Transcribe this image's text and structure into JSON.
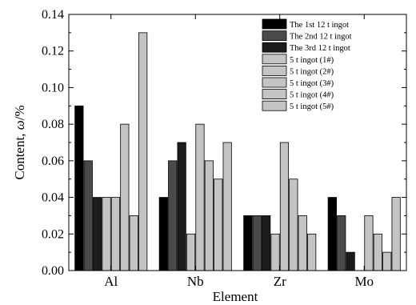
{
  "chart_data": {
    "type": "bar",
    "title": "",
    "xlabel": "Element",
    "ylabel_prefix": "Content, ",
    "ylabel_symbol": "ω",
    "ylabel_suffix": "/%",
    "categories": [
      "Al",
      "Nb",
      "Zr",
      "Mo"
    ],
    "ylim": [
      0,
      0.14
    ],
    "yticks": [
      0.0,
      0.02,
      0.04,
      0.06,
      0.08,
      0.1,
      0.12,
      0.14
    ],
    "ytick_labels": [
      "0.00",
      "0.02",
      "0.04",
      "0.06",
      "0.08",
      "0.10",
      "0.12",
      "0.14"
    ],
    "grid": false,
    "legend_position": "top-right",
    "series": [
      {
        "name": "The 1st 12 t ingot",
        "color": "#000000",
        "values": [
          0.09,
          0.04,
          0.03,
          0.04
        ]
      },
      {
        "name": "The 2nd 12 t ingot",
        "color": "#4a4a4a",
        "values": [
          0.06,
          0.06,
          0.03,
          0.03
        ]
      },
      {
        "name": "The 3rd 12 t ingot",
        "color": "#1c1c1c",
        "values": [
          0.04,
          0.07,
          0.03,
          0.01
        ]
      },
      {
        "name": "5 t ingot (1#)",
        "color": "#c4c4c4",
        "values": [
          0.04,
          0.02,
          0.02,
          0.0
        ]
      },
      {
        "name": "5 t ingot (2#)",
        "color": "#c4c4c4",
        "values": [
          0.04,
          0.08,
          0.07,
          0.03
        ]
      },
      {
        "name": "5 t ingot (3#)",
        "color": "#c4c4c4",
        "values": [
          0.08,
          0.06,
          0.05,
          0.02
        ]
      },
      {
        "name": "5 t ingot (4#)",
        "color": "#c4c4c4",
        "values": [
          0.03,
          0.05,
          0.03,
          0.01
        ]
      },
      {
        "name": "5 t ingot (5#)",
        "color": "#c4c4c4",
        "values": [
          0.13,
          0.07,
          0.02,
          0.04
        ]
      }
    ]
  }
}
